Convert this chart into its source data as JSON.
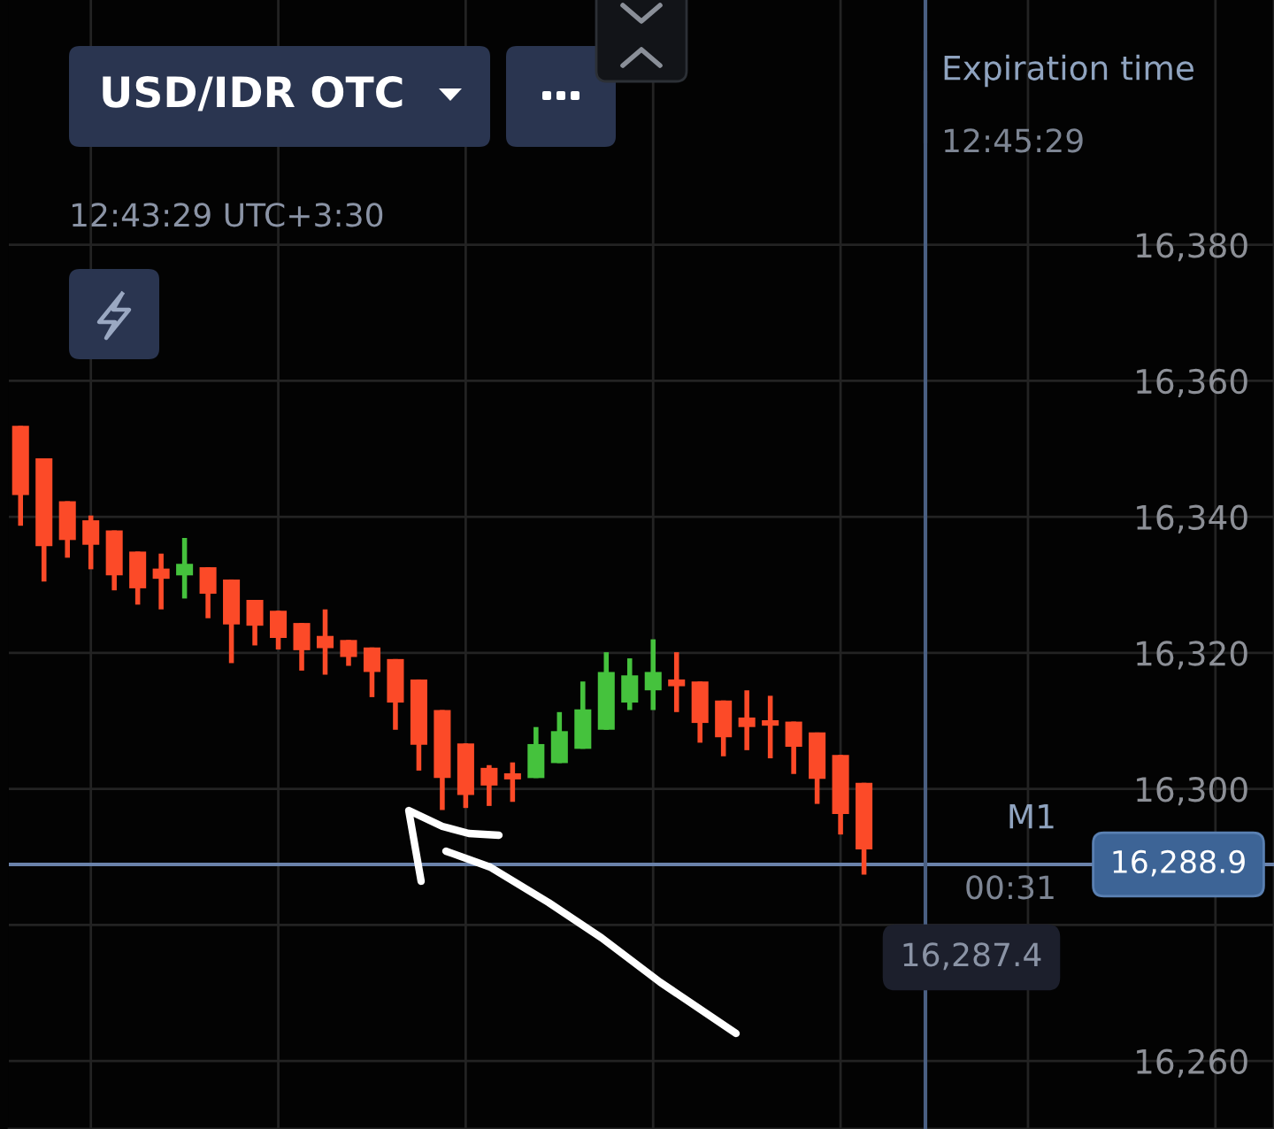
{
  "chart_data": {
    "type": "candlestick",
    "title": "USD/IDR OTC",
    "subtitle": "12:43:29 UTC+3:30",
    "categories": [
      null,
      null,
      null,
      null,
      null,
      null,
      null,
      null,
      null,
      null,
      null,
      null,
      null,
      null,
      null,
      null,
      null,
      null,
      null,
      null,
      null,
      null,
      null,
      null,
      null,
      null,
      null,
      null,
      null,
      null,
      null,
      null,
      null,
      null,
      null,
      null,
      null,
      null,
      null,
      null,
      null,
      null,
      null,
      null,
      null,
      null,
      null,
      null,
      null,
      null,
      null,
      null,
      null,
      null
    ],
    "ohlc": [
      [
        16353.4,
        16353.4,
        16338.7,
        16343.2
      ],
      [
        16348.6,
        16348.6,
        16330.5,
        16335.7
      ],
      [
        16342.3,
        16342.3,
        16334.0,
        16336.6
      ],
      [
        16339.5,
        16340.2,
        16332.3,
        16335.9
      ],
      [
        16338.0,
        16338.0,
        16329.2,
        16331.4
      ],
      [
        16334.9,
        16334.9,
        16327.1,
        16329.5
      ],
      [
        16332.4,
        16334.6,
        16326.4,
        16330.9
      ],
      [
        16331.4,
        16336.9,
        16328.0,
        16333.1
      ],
      [
        16332.6,
        16332.6,
        16325.1,
        16328.7
      ],
      [
        16330.8,
        16330.8,
        16318.5,
        16324.2
      ],
      [
        16327.8,
        16327.8,
        16321.1,
        16324.0
      ],
      [
        16326.2,
        16326.2,
        16320.5,
        16322.2
      ],
      [
        16324.4,
        16324.4,
        16317.4,
        16320.4
      ],
      [
        16322.5,
        16326.4,
        16316.8,
        16320.7
      ],
      [
        16321.9,
        16321.9,
        16318.1,
        16319.4
      ],
      [
        16320.8,
        16320.8,
        16313.5,
        16317.2
      ],
      [
        16319.1,
        16319.1,
        16308.7,
        16312.7
      ],
      [
        16316.1,
        16316.1,
        16302.7,
        16306.5
      ],
      [
        16311.6,
        16311.6,
        16296.9,
        16301.6
      ],
      [
        16306.7,
        16306.7,
        16297.2,
        16299.1
      ],
      [
        16303.1,
        16303.5,
        16297.5,
        16300.5
      ],
      [
        16302.3,
        16303.9,
        16298.1,
        16301.4
      ],
      [
        16301.6,
        16309.1,
        16301.6,
        16306.6
      ],
      [
        16303.8,
        16311.3,
        16303.8,
        16308.5
      ],
      [
        16305.9,
        16315.8,
        16305.9,
        16311.7
      ],
      [
        16308.7,
        16320.1,
        16308.7,
        16317.2
      ],
      [
        16312.7,
        16319.2,
        16311.6,
        16316.7
      ],
      [
        16314.5,
        16322.0,
        16311.6,
        16317.2
      ],
      [
        16316.1,
        16320.1,
        16311.3,
        16315.1
      ],
      [
        16315.8,
        16315.8,
        16306.8,
        16309.7
      ],
      [
        16313.0,
        16313.0,
        16304.8,
        16307.6
      ],
      [
        16310.5,
        16314.5,
        16305.7,
        16309.1
      ],
      [
        16310.1,
        16313.7,
        16304.5,
        16309.3
      ],
      [
        16309.9,
        16309.9,
        16302.2,
        16306.2
      ],
      [
        16308.3,
        16308.3,
        16297.8,
        16301.5
      ],
      [
        16305.0,
        16305.0,
        16293.3,
        16296.3
      ],
      [
        16300.9,
        16300.9,
        16287.4,
        16291.1
      ],
      null,
      null,
      null,
      null,
      null,
      null,
      null,
      null,
      null,
      null,
      null,
      null,
      null,
      null,
      null,
      null,
      null
    ],
    "colors": [
      "#fc4a28",
      "#fc4a28",
      "#fc4a28",
      "#fc4a28",
      "#fc4a28",
      "#fc4a28",
      "#fc4a28",
      "#45c23d",
      "#fc4a28",
      "#fc4a28",
      "#fc4a28",
      "#fc4a28",
      "#fc4a28",
      "#fc4a28",
      "#fc4a28",
      "#fc4a28",
      "#fc4a28",
      "#fc4a28",
      "#fc4a28",
      "#fc4a28",
      "#fc4a28",
      "#fc4a28",
      "#45c23d",
      "#45c23d",
      "#45c23d",
      "#45c23d",
      "#45c23d",
      "#45c23d",
      "#fc4a28",
      "#fc4a28",
      "#fc4a28",
      "#fc4a28",
      "#fc4a28",
      "#fc4a28",
      "#fc4a28",
      "#fc4a28",
      "#fc4a28",
      null,
      null,
      null,
      null,
      null,
      null,
      null,
      null,
      null,
      null,
      null,
      null,
      null,
      null,
      null,
      null,
      null
    ],
    "ylim": [
      16250,
      16416
    ],
    "yticks": [
      {
        "value": 16260,
        "label": "16,260"
      },
      {
        "value": 16280,
        "label": null
      },
      {
        "value": 16300,
        "label": "16,300"
      },
      {
        "value": 16320,
        "label": "16,320"
      },
      {
        "value": 16340,
        "label": "16,340"
      },
      {
        "value": 16360,
        "label": "16,360"
      },
      {
        "value": 16380,
        "label": "16,380"
      }
    ],
    "tick_labels": "y",
    "grid": true,
    "ref_lines": [
      {
        "axis": "y",
        "value": 16288.9,
        "label": "16,288.9",
        "color": "#6a82aa",
        "line_style": "solid"
      }
    ],
    "annotations": [
      "Expiration time",
      "12:45:29",
      "M1",
      "00:31",
      "16,287.4"
    ]
  }
}
